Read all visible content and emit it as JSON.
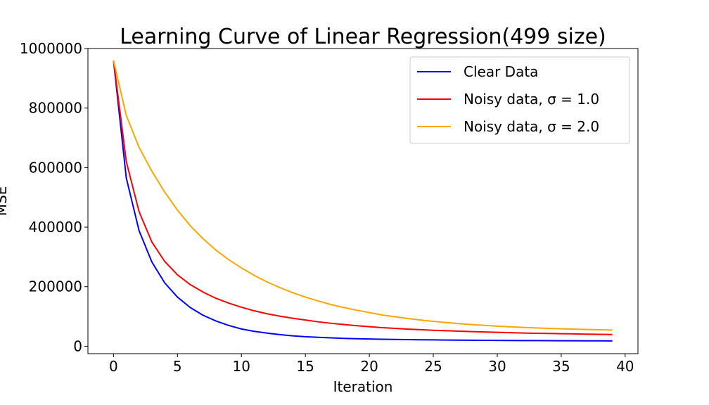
{
  "chart_data": {
    "type": "line",
    "title": "Learning Curve of Linear Regression(499 size)",
    "xlabel": "Iteration",
    "ylabel": "MSE",
    "xlim": [
      -2,
      41
    ],
    "ylim": [
      -25000,
      1000000
    ],
    "xticks": [
      0,
      5,
      10,
      15,
      20,
      25,
      30,
      35,
      40
    ],
    "yticks": [
      0,
      200000,
      400000,
      600000,
      800000,
      1000000
    ],
    "grid": false,
    "legend_position": "top-right",
    "series": [
      {
        "name": "Clear Data",
        "color": "#0000ff",
        "x": [
          0,
          1,
          2,
          3,
          4,
          5,
          6,
          7,
          8,
          9,
          10,
          11,
          12,
          13,
          14,
          15,
          16,
          17,
          18,
          19,
          20,
          21,
          22,
          23,
          24,
          25,
          26,
          27,
          28,
          29,
          30,
          31,
          32,
          33,
          34,
          35,
          36,
          37,
          38,
          39
        ],
        "values": [
          960000,
          565000,
          388000,
          283000,
          213000,
          165000,
          130000,
          104000,
          85000,
          70000,
          58000,
          50000,
          44000,
          39000,
          35000,
          32000,
          30000,
          28000,
          26500,
          25300,
          24300,
          23500,
          22800,
          22200,
          21700,
          21300,
          20900,
          20500,
          20200,
          19900,
          19600,
          19300,
          19100,
          18900,
          18700,
          18500,
          18300,
          18100,
          18000,
          17800
        ]
      },
      {
        "name": "Noisy data, σ = 1.0",
        "color": "#ff0000",
        "x": [
          0,
          1,
          2,
          3,
          4,
          5,
          6,
          7,
          8,
          9,
          10,
          11,
          12,
          13,
          14,
          15,
          16,
          17,
          18,
          19,
          20,
          21,
          22,
          23,
          24,
          25,
          26,
          27,
          28,
          29,
          30,
          31,
          32,
          33,
          34,
          35,
          36,
          37,
          38,
          39
        ],
        "values": [
          960000,
          620000,
          452000,
          350000,
          285000,
          240000,
          207000,
          182000,
          161000,
          145000,
          131000,
          119000,
          109000,
          101000,
          94000,
          88000,
          82000,
          77000,
          73000,
          69000,
          65500,
          62500,
          60000,
          57500,
          55500,
          53500,
          52000,
          50500,
          49000,
          47800,
          46600,
          45500,
          44500,
          43600,
          42800,
          42000,
          41300,
          40600,
          40000,
          39400
        ]
      },
      {
        "name": "Noisy data, σ = 2.0",
        "color": "#ffa500",
        "x": [
          0,
          1,
          2,
          3,
          4,
          5,
          6,
          7,
          8,
          9,
          10,
          11,
          12,
          13,
          14,
          15,
          16,
          17,
          18,
          19,
          20,
          21,
          22,
          23,
          24,
          25,
          26,
          27,
          28,
          29,
          30,
          31,
          32,
          33,
          34,
          35,
          36,
          37,
          38,
          39
        ],
        "values": [
          960000,
          775000,
          668000,
          588000,
          518000,
          457000,
          405000,
          361000,
          323000,
          291000,
          263000,
          238000,
          216000,
          197000,
          180000,
          165000,
          152000,
          140000,
          130000,
          121000,
          113000,
          105000,
          99000,
          93000,
          88000,
          83500,
          79500,
          76000,
          72800,
          70000,
          67500,
          65300,
          63300,
          61500,
          60000,
          58600,
          57300,
          56200,
          55200,
          54300
        ]
      }
    ]
  }
}
